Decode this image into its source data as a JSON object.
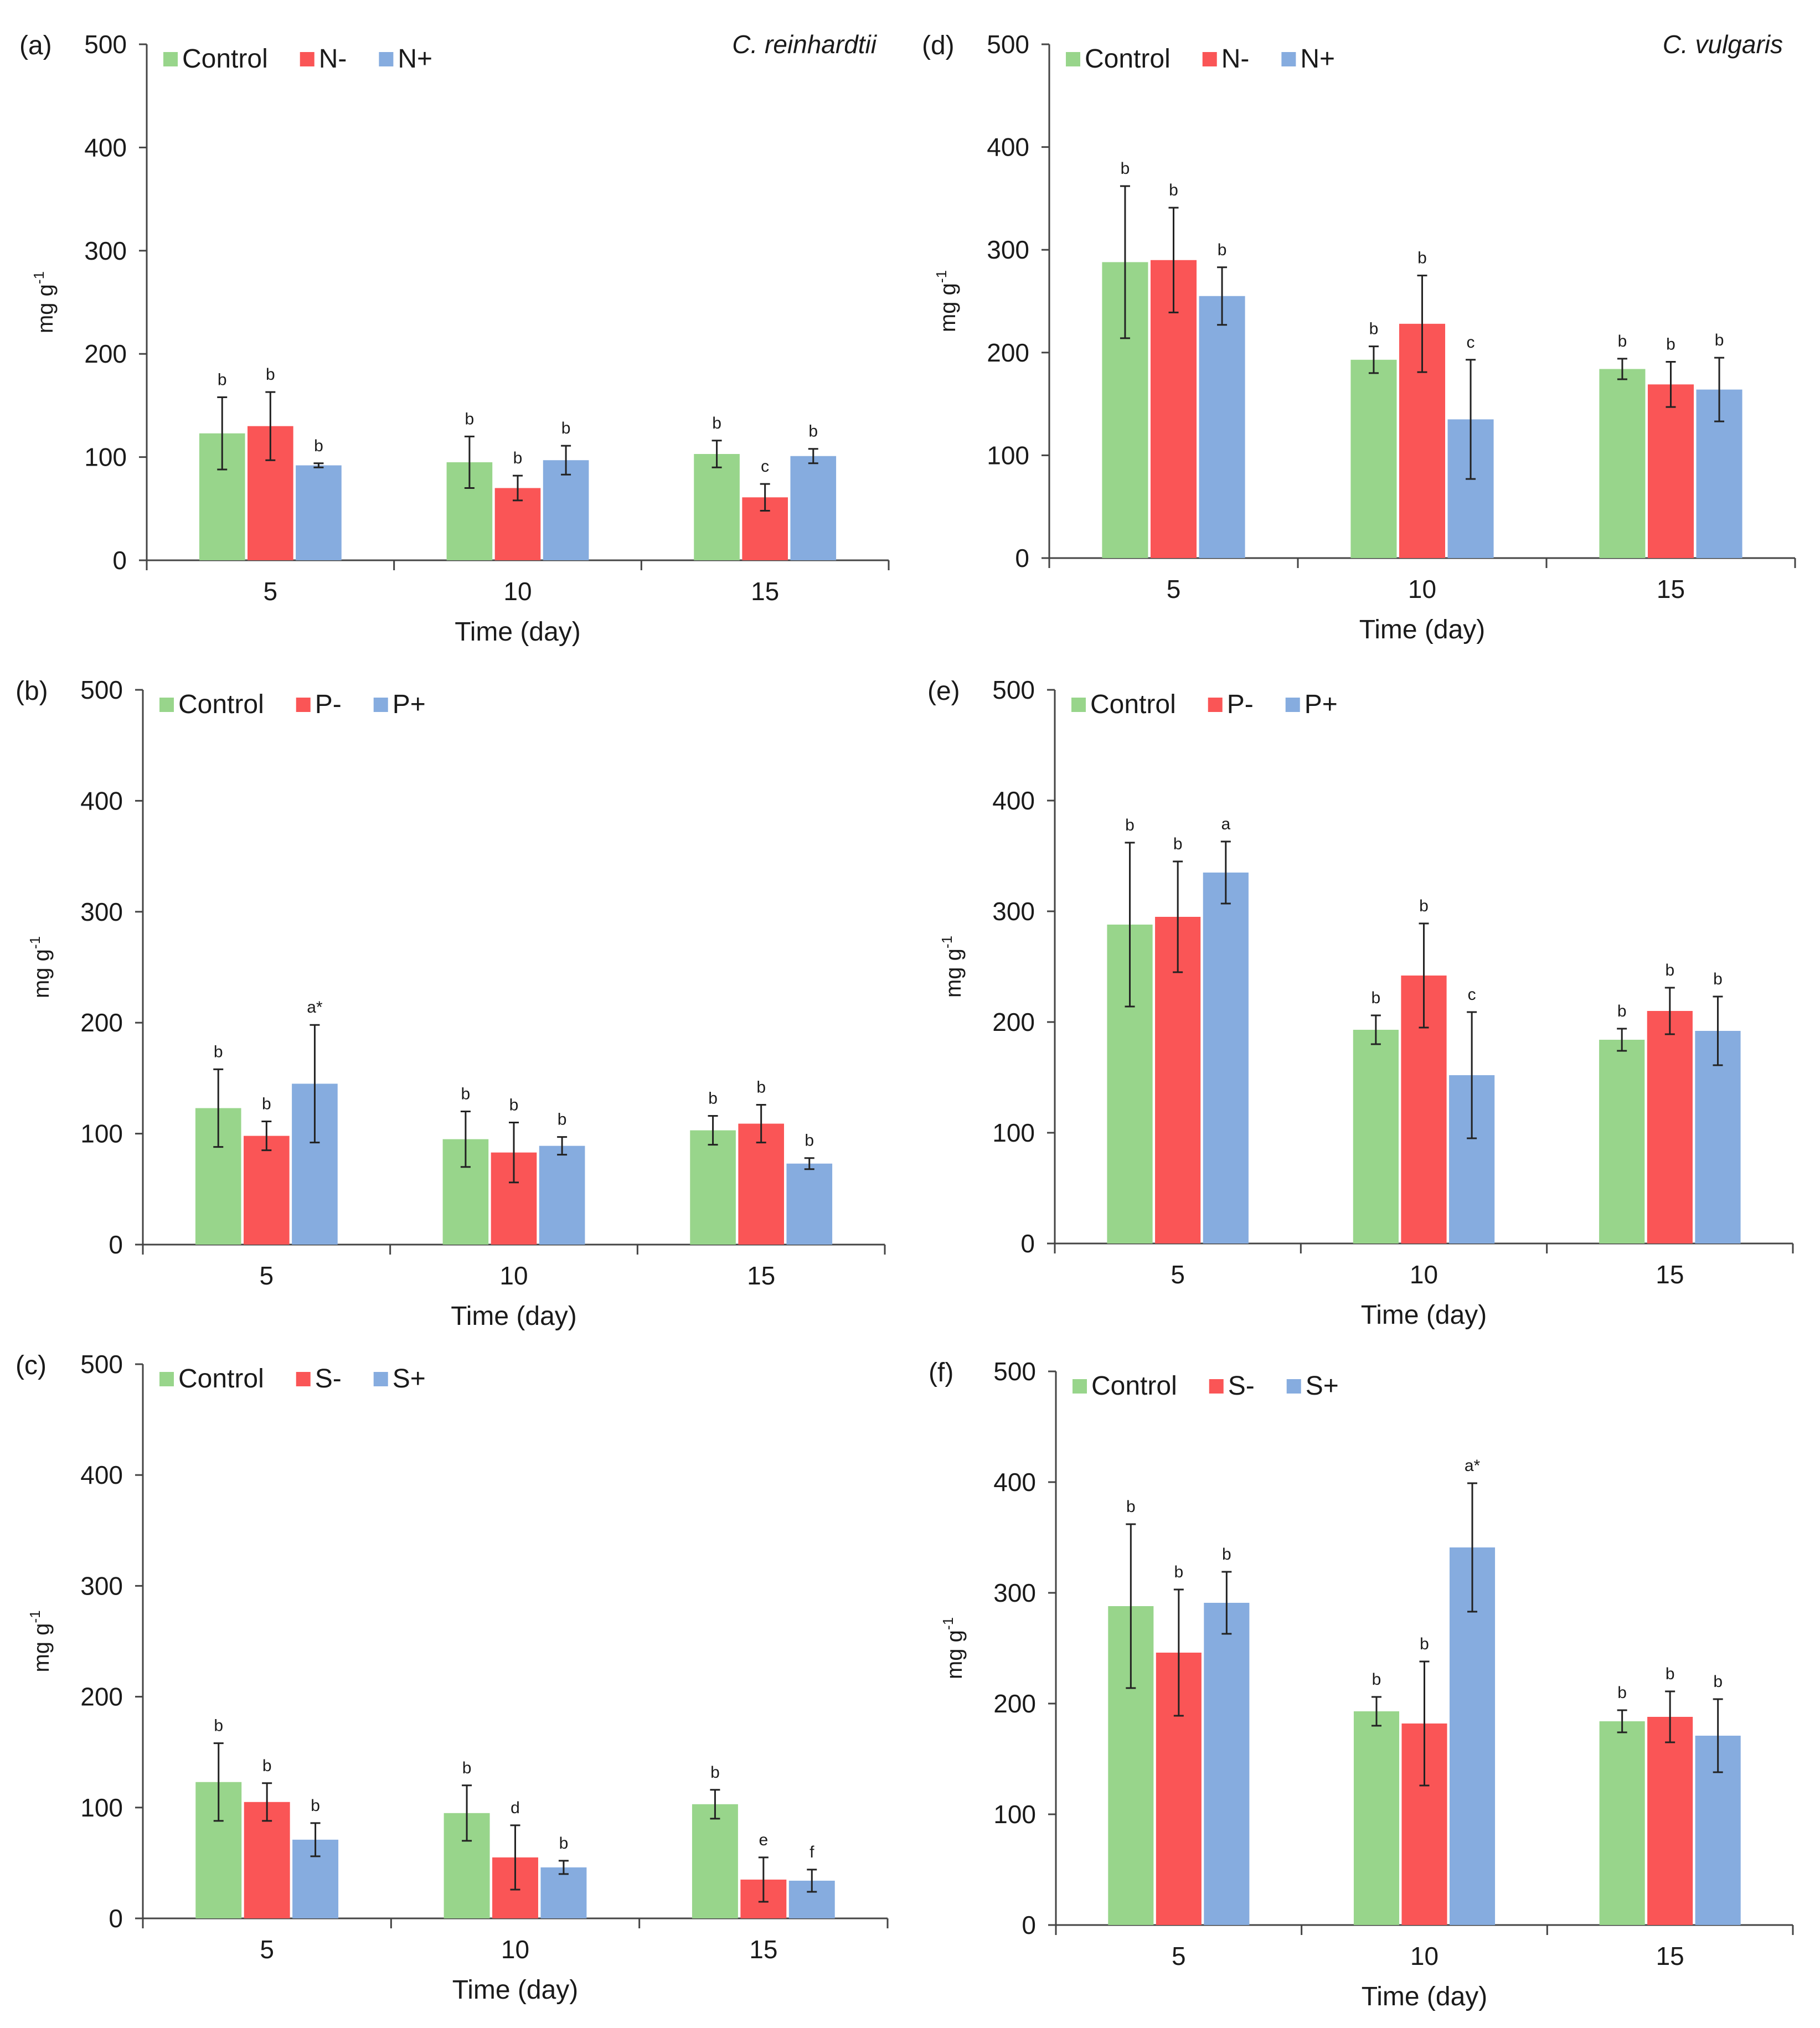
{
  "colors": {
    "control": "#98d58b",
    "minus": "#fa5556",
    "plus": "#86acdf",
    "axis": "#444444",
    "text": "#1a1a1a"
  },
  "chart_data": [
    {
      "panel": "(a)",
      "species": "C. reinhardtii",
      "type": "bar",
      "xlabel": "Time (day)",
      "ylabel": "mg g",
      "ylabel_sup": "-1",
      "ylim": [
        0,
        500
      ],
      "yticks": [
        0,
        100,
        200,
        300,
        400,
        500
      ],
      "categories": [
        "5",
        "10",
        "15"
      ],
      "legend_position": "top-left",
      "series": [
        {
          "name": "Control",
          "values": [
            123,
            95,
            103
          ],
          "errors": [
            35,
            25,
            13
          ],
          "letters": [
            "b",
            "b",
            "b"
          ]
        },
        {
          "name": "N-",
          "values": [
            130,
            70,
            61
          ],
          "errors": [
            33,
            12,
            13
          ],
          "letters": [
            "b",
            "b",
            "c"
          ]
        },
        {
          "name": "N+",
          "values": [
            92,
            97,
            101
          ],
          "errors": [
            2,
            14,
            7
          ],
          "letters": [
            "b",
            "b",
            "b"
          ]
        }
      ]
    },
    {
      "panel": "(b)",
      "species": "",
      "type": "bar",
      "xlabel": "Time (day)",
      "ylabel": "mg g",
      "ylabel_sup": "-1",
      "ylim": [
        0,
        500
      ],
      "yticks": [
        0,
        100,
        200,
        300,
        400,
        500
      ],
      "categories": [
        "5",
        "10",
        "15"
      ],
      "legend_position": "top-left",
      "series": [
        {
          "name": "Control",
          "values": [
            123,
            95,
            103
          ],
          "errors": [
            35,
            25,
            13
          ],
          "letters": [
            "b",
            "b",
            "b"
          ]
        },
        {
          "name": "P-",
          "values": [
            98,
            83,
            109
          ],
          "errors": [
            13,
            27,
            17
          ],
          "letters": [
            "b",
            "b",
            "b"
          ]
        },
        {
          "name": "P+",
          "values": [
            145,
            89,
            73
          ],
          "errors": [
            53,
            8,
            5
          ],
          "letters": [
            "a*",
            "b",
            "b"
          ]
        }
      ]
    },
    {
      "panel": "(c)",
      "species": "",
      "type": "bar",
      "xlabel": "Time (day)",
      "ylabel": "mg g",
      "ylabel_sup": "-1",
      "ylim": [
        0,
        500
      ],
      "yticks": [
        0,
        100,
        200,
        300,
        400,
        500
      ],
      "categories": [
        "5",
        "10",
        "15"
      ],
      "legend_position": "top-left",
      "series": [
        {
          "name": "Control",
          "values": [
            123,
            95,
            103
          ],
          "errors": [
            35,
            25,
            13
          ],
          "letters": [
            "b",
            "b",
            "b"
          ]
        },
        {
          "name": "S-",
          "values": [
            105,
            55,
            35
          ],
          "errors": [
            17,
            29,
            20
          ],
          "letters": [
            "b",
            "d",
            "e"
          ]
        },
        {
          "name": "S+",
          "values": [
            71,
            46,
            34
          ],
          "errors": [
            15,
            6,
            10
          ],
          "letters": [
            "b",
            "b",
            "f"
          ]
        }
      ]
    },
    {
      "panel": "(d)",
      "species": "C. vulgaris",
      "type": "bar",
      "xlabel": "Time (day)",
      "ylabel": "mg g",
      "ylabel_sup": "-1",
      "ylim": [
        0,
        500
      ],
      "yticks": [
        0,
        100,
        200,
        300,
        400,
        500
      ],
      "categories": [
        "5",
        "10",
        "15"
      ],
      "legend_position": "top-left",
      "series": [
        {
          "name": "Control",
          "values": [
            288,
            193,
            184
          ],
          "errors": [
            74,
            13,
            10
          ],
          "letters": [
            "b",
            "b",
            "b"
          ]
        },
        {
          "name": "N-",
          "values": [
            290,
            228,
            169
          ],
          "errors": [
            51,
            47,
            22
          ],
          "letters": [
            "b",
            "b",
            "b"
          ]
        },
        {
          "name": "N+",
          "values": [
            255,
            135,
            164
          ],
          "errors": [
            28,
            58,
            31
          ],
          "letters": [
            "b",
            "c",
            "b"
          ]
        }
      ]
    },
    {
      "panel": "(e)",
      "species": "",
      "type": "bar",
      "xlabel": "Time (day)",
      "ylabel": "mg g",
      "ylabel_sup": "-1",
      "ylim": [
        0,
        500
      ],
      "yticks": [
        0,
        100,
        200,
        300,
        400,
        500
      ],
      "categories": [
        "5",
        "10",
        "15"
      ],
      "legend_position": "top-left",
      "series": [
        {
          "name": "Control",
          "values": [
            288,
            193,
            184
          ],
          "errors": [
            74,
            13,
            10
          ],
          "letters": [
            "b",
            "b",
            "b"
          ]
        },
        {
          "name": "P-",
          "values": [
            295,
            242,
            210
          ],
          "errors": [
            50,
            47,
            21
          ],
          "letters": [
            "b",
            "b",
            "b"
          ]
        },
        {
          "name": "P+",
          "values": [
            335,
            152,
            192
          ],
          "errors": [
            28,
            57,
            31
          ],
          "letters": [
            "a",
            "c",
            "b"
          ]
        }
      ]
    },
    {
      "panel": "(f)",
      "species": "",
      "type": "bar",
      "xlabel": "Time (day)",
      "ylabel": "mg g",
      "ylabel_sup": "-1",
      "ylim": [
        0,
        500
      ],
      "yticks": [
        0,
        100,
        200,
        300,
        400,
        500
      ],
      "categories": [
        "5",
        "10",
        "15"
      ],
      "legend_position": "top-left",
      "series": [
        {
          "name": "Control",
          "values": [
            288,
            193,
            184
          ],
          "errors": [
            74,
            13,
            10
          ],
          "letters": [
            "b",
            "b",
            "b"
          ]
        },
        {
          "name": "S-",
          "values": [
            246,
            182,
            188
          ],
          "errors": [
            57,
            56,
            23
          ],
          "letters": [
            "b",
            "b",
            "b"
          ]
        },
        {
          "name": "S+",
          "values": [
            291,
            341,
            171
          ],
          "errors": [
            28,
            58,
            33
          ],
          "letters": [
            "b",
            "a*",
            "b"
          ]
        }
      ]
    }
  ]
}
